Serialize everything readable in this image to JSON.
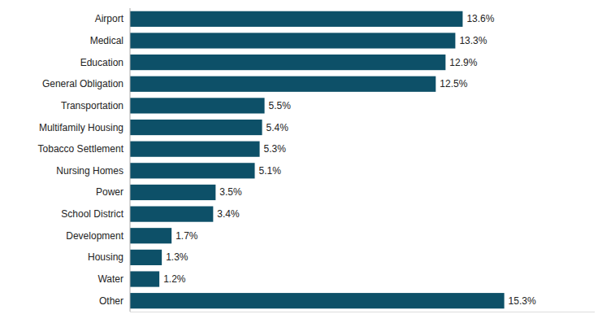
{
  "chart_data": {
    "type": "bar",
    "orientation": "horizontal",
    "categories": [
      "Airport",
      "Medical",
      "Education",
      "General Obligation",
      "Transportation",
      "Multifamily Housing",
      "Tobacco Settlement",
      "Nursing Homes",
      "Power",
      "School District",
      "Development",
      "Housing",
      "Water",
      "Other"
    ],
    "values": [
      13.6,
      13.3,
      12.9,
      12.5,
      5.5,
      5.4,
      5.3,
      5.1,
      3.5,
      3.4,
      1.7,
      1.3,
      1.2,
      15.3
    ],
    "value_labels": [
      "13.6%",
      "13.3%",
      "12.9%",
      "12.5%",
      "5.5%",
      "5.4%",
      "5.3%",
      "5.1%",
      "3.5%",
      "3.4%",
      "1.7%",
      "1.3%",
      "1.2%",
      "15.3%"
    ],
    "color": "#0d5068",
    "xlim": [
      0,
      19
    ],
    "data_labels": true,
    "tick_labels": "y",
    "grid": false
  }
}
